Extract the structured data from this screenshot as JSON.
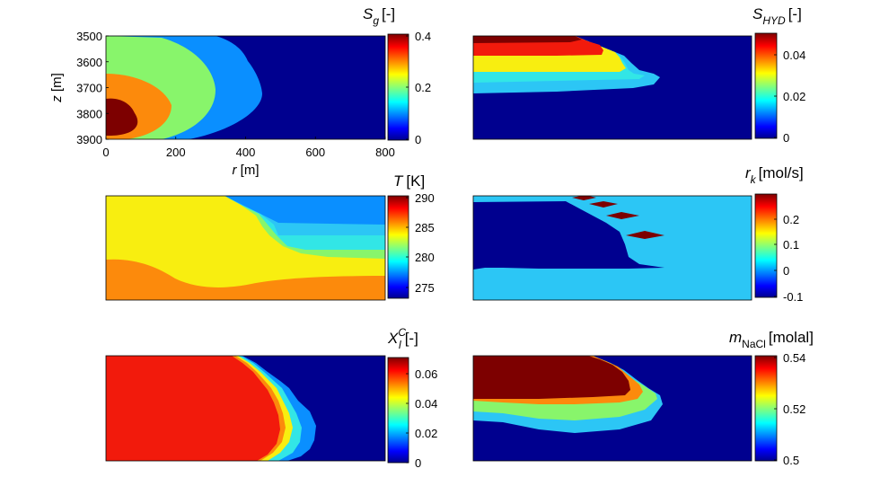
{
  "panels": [
    {
      "id": "sg",
      "title_main": "S",
      "title_sub": "g",
      "title_sup": "",
      "title_unit": "[-]",
      "ticks": [
        "0.4",
        "0.2",
        "0"
      ],
      "y_ticks": [
        "3500",
        "3600",
        "3700",
        "3800",
        "3900"
      ],
      "y_label": "z [m]",
      "x_ticks": [
        "0",
        "200",
        "400",
        "600",
        "800"
      ],
      "x_label": "r [m]"
    },
    {
      "id": "shyd",
      "title_main": "S",
      "title_sub": "HYD",
      "title_sup": "",
      "title_unit": "[-]",
      "ticks": [
        "0.04",
        "0.02",
        "0"
      ]
    },
    {
      "id": "temp",
      "title_main": "T",
      "title_sub": "",
      "title_sup": "",
      "title_unit": "[K]",
      "ticks": [
        "290",
        "285",
        "280",
        "275"
      ]
    },
    {
      "id": "rk",
      "title_main": "r",
      "title_sub": "k",
      "title_sup": "",
      "title_unit": "[mol/s]",
      "ticks": [
        "0.2",
        "0.1",
        "0",
        "-0.1"
      ]
    },
    {
      "id": "xlc",
      "title_main": "X",
      "title_sub": "l",
      "title_sup": "C",
      "title_unit": "[-]",
      "ticks": [
        "0.06",
        "0.04",
        "0.02",
        "0"
      ]
    },
    {
      "id": "mnacl",
      "title_main": "m",
      "title_sub": "NaCl",
      "title_sup": "",
      "title_unit": "[molal]",
      "ticks": [
        "0.54",
        "0.52",
        "0.5"
      ]
    }
  ],
  "colors": {
    "dark_blue": "#00008f",
    "blue": "#0a8fff",
    "light_blue": "#2cc6f5",
    "cyan": "#32e6e6",
    "green": "#88f56b",
    "yellow": "#f8ee10",
    "orange": "#fc8a0c",
    "red": "#f21a0c",
    "dark_red": "#7d0000"
  }
}
